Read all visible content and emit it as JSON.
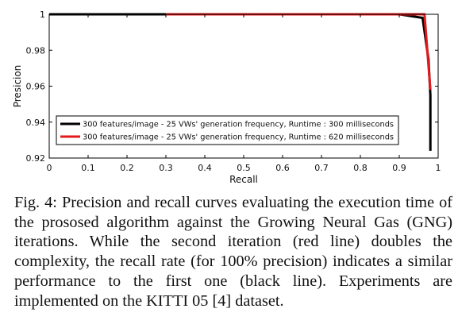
{
  "chart_data": {
    "type": "line",
    "xlabel": "Recall",
    "ylabel": "Presicion",
    "xlim": [
      0,
      1
    ],
    "ylim": [
      0.92,
      1
    ],
    "x_ticks": [
      0,
      0.1,
      0.2,
      0.3,
      0.4,
      0.5,
      0.6,
      0.7,
      0.8,
      0.9,
      1
    ],
    "x_tick_labels": [
      "0",
      "0.1",
      "0.2",
      "0.3",
      "0.4",
      "0.5",
      "0.6",
      "0.7",
      "0.8",
      "0.9",
      "1"
    ],
    "y_ticks": [
      0.92,
      0.94,
      0.96,
      0.98,
      1
    ],
    "y_tick_labels": [
      "0.92",
      "0.94",
      "0.96",
      "0.98",
      "1"
    ],
    "grid": false,
    "legend_position": "bottom-center",
    "series": [
      {
        "name": "300 features/image - 25 VWs' generation frequency, Runtime : 300 milliseconds",
        "color": "#000000",
        "x": [
          0,
          0.3,
          0.5,
          0.7,
          0.9,
          0.96,
          0.975,
          0.98,
          0.98,
          0.98
        ],
        "y": [
          1,
          1,
          1,
          1,
          1,
          0.998,
          0.975,
          0.955,
          0.94,
          0.924
        ]
      },
      {
        "name": "300 features/image - 25 VWs' generation frequency, Runtime : 620 milliseconds",
        "color": "#e41a1c",
        "x": [
          0.3,
          0.5,
          0.7,
          0.9,
          0.965,
          0.98
        ],
        "y": [
          1,
          1,
          1,
          1,
          1,
          0.958
        ]
      }
    ]
  },
  "caption": "Fig. 4: Precision and recall curves evaluating the execution time of the prososed algorithm against the Growing Neural Gas (GNG) iterations. While the second iteration (red line) doubles the complexity, the recall rate (for 100% precision) indicates a similar performance to the first one (black line). Experiments are implemented on the KITTI 05 [4] dataset."
}
